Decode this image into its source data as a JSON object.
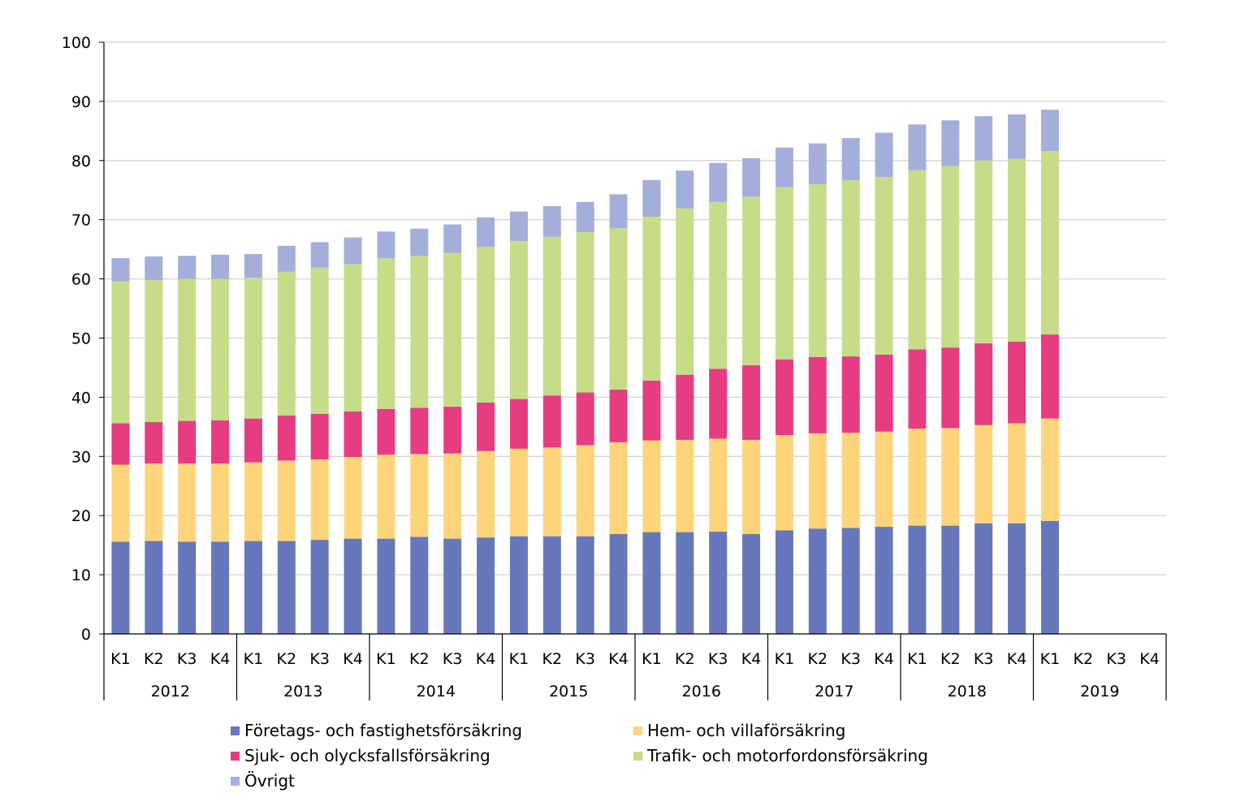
{
  "chart_data": {
    "type": "bar",
    "stacked": true,
    "ylim": [
      0,
      100
    ],
    "yticks": [
      0,
      10,
      20,
      30,
      40,
      50,
      60,
      70,
      80,
      90,
      100
    ],
    "grid": true,
    "legend_position": "bottom",
    "quarters": [
      "K1",
      "K2",
      "K3",
      "K4"
    ],
    "years": [
      "2012",
      "2013",
      "2014",
      "2015",
      "2016",
      "2017",
      "2018",
      "2019"
    ],
    "series": [
      {
        "name": "Företags- och fastighetsförsäkring",
        "color": "#6677bb",
        "values": [
          15.6,
          15.7,
          15.6,
          15.6,
          15.7,
          15.7,
          15.9,
          16.1,
          16.1,
          16.4,
          16.1,
          16.3,
          16.5,
          16.5,
          16.5,
          16.9,
          17.2,
          17.2,
          17.3,
          16.9,
          17.5,
          17.8,
          17.9,
          18.1,
          18.3,
          18.3,
          18.7,
          18.7,
          19.1,
          null,
          null,
          null
        ]
      },
      {
        "name": "Hem- och villaförsäkring",
        "color": "#fdd47a",
        "values": [
          13.0,
          13.1,
          13.2,
          13.2,
          13.3,
          13.6,
          13.6,
          13.8,
          14.2,
          14.0,
          14.4,
          14.6,
          14.8,
          15.0,
          15.4,
          15.5,
          15.5,
          15.6,
          15.7,
          15.9,
          16.1,
          16.1,
          16.1,
          16.1,
          16.4,
          16.5,
          16.6,
          16.9,
          17.3,
          null,
          null,
          null
        ]
      },
      {
        "name": "Sjuk- och olycksfallsförsäkring",
        "color": "#e63c82",
        "values": [
          7.0,
          7.0,
          7.2,
          7.3,
          7.4,
          7.6,
          7.7,
          7.7,
          7.7,
          7.8,
          7.9,
          8.2,
          8.4,
          8.8,
          8.9,
          8.9,
          10.1,
          11.0,
          11.8,
          12.6,
          12.8,
          12.9,
          12.9,
          13.0,
          13.4,
          13.6,
          13.8,
          13.8,
          14.2,
          null,
          null,
          null
        ]
      },
      {
        "name": "Trafik- och motorfordonsförsäkring",
        "color": "#c6dc88",
        "values": [
          24.0,
          24.0,
          24.0,
          23.9,
          23.8,
          24.3,
          24.7,
          24.9,
          25.5,
          25.7,
          26.0,
          26.3,
          26.7,
          26.8,
          27.1,
          27.3,
          27.7,
          28.1,
          28.2,
          28.5,
          29.1,
          29.2,
          29.8,
          30.0,
          30.3,
          30.7,
          30.9,
          30.9,
          31.0,
          null,
          null,
          null
        ]
      },
      {
        "name": "Övrigt",
        "color": "#a3afda",
        "values": [
          3.9,
          4.0,
          3.9,
          4.1,
          4.0,
          4.4,
          4.3,
          4.5,
          4.5,
          4.6,
          4.8,
          5.0,
          5.0,
          5.2,
          5.1,
          5.7,
          6.2,
          6.4,
          6.6,
          6.5,
          6.7,
          6.9,
          7.1,
          7.5,
          7.7,
          7.7,
          7.5,
          7.5,
          7.0,
          null,
          null,
          null
        ]
      }
    ]
  }
}
